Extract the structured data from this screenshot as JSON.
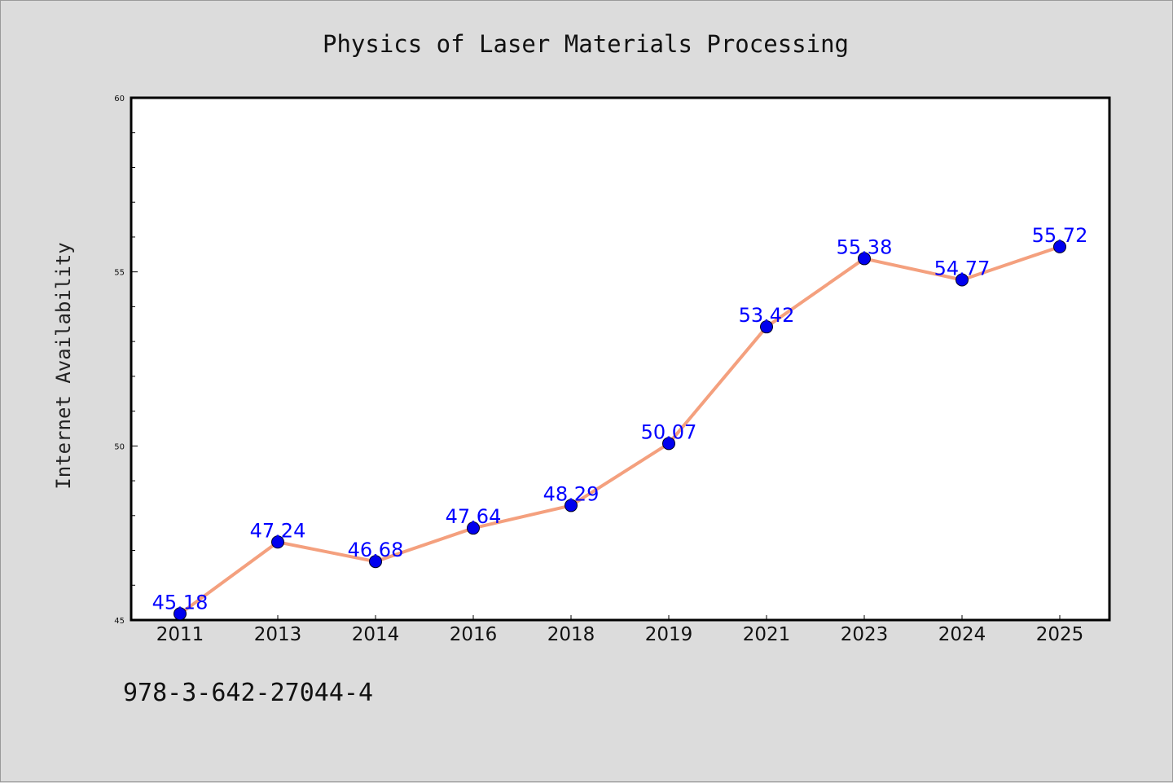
{
  "chart_data": {
    "type": "line",
    "title": "Physics of Laser Materials Processing",
    "xlabel": "",
    "ylabel": "Internet Availability",
    "categories": [
      "2011",
      "2013",
      "2014",
      "2016",
      "2018",
      "2019",
      "2021",
      "2023",
      "2024",
      "2025"
    ],
    "values": [
      45.18,
      47.24,
      46.68,
      47.64,
      48.29,
      50.07,
      53.42,
      55.38,
      54.77,
      55.72
    ],
    "data_labels": [
      "45.18",
      "47.24",
      "46.68",
      "47.64",
      "48.29",
      "50.07",
      "53.42",
      "55.38",
      "54.77",
      "55.72"
    ],
    "ylim": [
      45,
      60
    ],
    "yticks": [
      "45",
      "50",
      "55",
      "60"
    ],
    "grid": false,
    "line_color": "#f4a07e",
    "marker_color": "#0000ee",
    "label_color": "#0000ff"
  },
  "footer": {
    "code": "978-3-642-27044-4"
  }
}
